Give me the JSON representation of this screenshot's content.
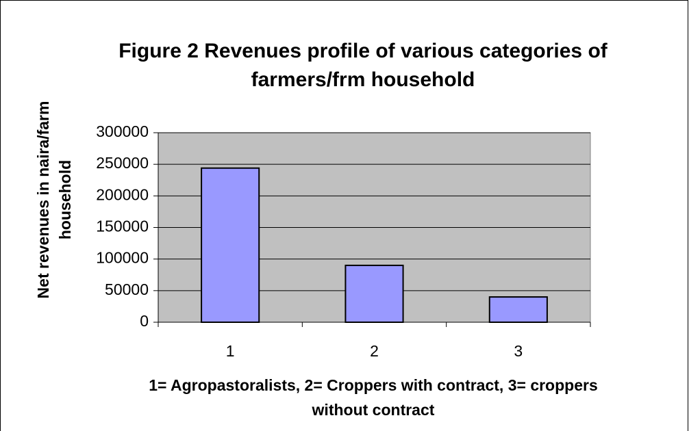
{
  "chart_data": {
    "type": "bar",
    "title": "Figure 2 Revenues profile of various categories of farmers/frm household",
    "x_label": "1= Agropastoralists, 2= Croppers with contract, 3= croppers without contract",
    "y_label": "Net revenues in naira/farm household",
    "categories": [
      "1",
      "2",
      "3"
    ],
    "values": [
      244000,
      90000,
      40000
    ],
    "color": "#9999ff",
    "plot_background": "#c0c0c0",
    "ylim": [
      0,
      300000
    ],
    "yticks": [
      0,
      50000,
      100000,
      150000,
      200000,
      250000,
      300000
    ],
    "grid": true
  }
}
